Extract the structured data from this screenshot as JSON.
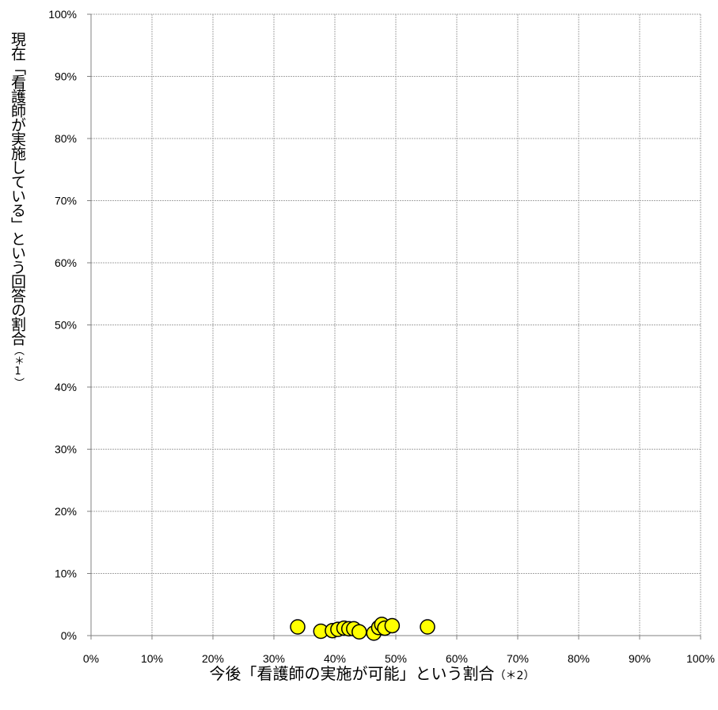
{
  "chart_data": {
    "type": "scatter",
    "title": "",
    "xlabel": "今後「看護師の実施が可能」という割合",
    "xlabel_note": "（＊2）",
    "ylabel": "現在「看護師が実施している」という回答の割合",
    "ylabel_note": "（＊1）",
    "xlim": [
      0,
      100
    ],
    "ylim": [
      0,
      100
    ],
    "x_ticks": [
      "0%",
      "10%",
      "20%",
      "30%",
      "40%",
      "50%",
      "60%",
      "70%",
      "80%",
      "90%",
      "100%"
    ],
    "y_ticks": [
      "0%",
      "10%",
      "20%",
      "30%",
      "40%",
      "50%",
      "60%",
      "70%",
      "80%",
      "90%",
      "100%"
    ],
    "grid": true,
    "marker_color": "#ffff00",
    "marker_edge": "#000000",
    "points": [
      {
        "x": 33.9,
        "y": 1.4
      },
      {
        "x": 37.7,
        "y": 0.7
      },
      {
        "x": 39.6,
        "y": 0.8
      },
      {
        "x": 40.5,
        "y": 1.0
      },
      {
        "x": 41.5,
        "y": 1.2
      },
      {
        "x": 42.3,
        "y": 1.1
      },
      {
        "x": 43.1,
        "y": 1.1
      },
      {
        "x": 44.0,
        "y": 0.6
      },
      {
        "x": 46.4,
        "y": 0.4
      },
      {
        "x": 47.2,
        "y": 1.3
      },
      {
        "x": 47.7,
        "y": 1.8
      },
      {
        "x": 48.2,
        "y": 1.2
      },
      {
        "x": 49.4,
        "y": 1.6
      },
      {
        "x": 55.2,
        "y": 1.4
      }
    ]
  }
}
